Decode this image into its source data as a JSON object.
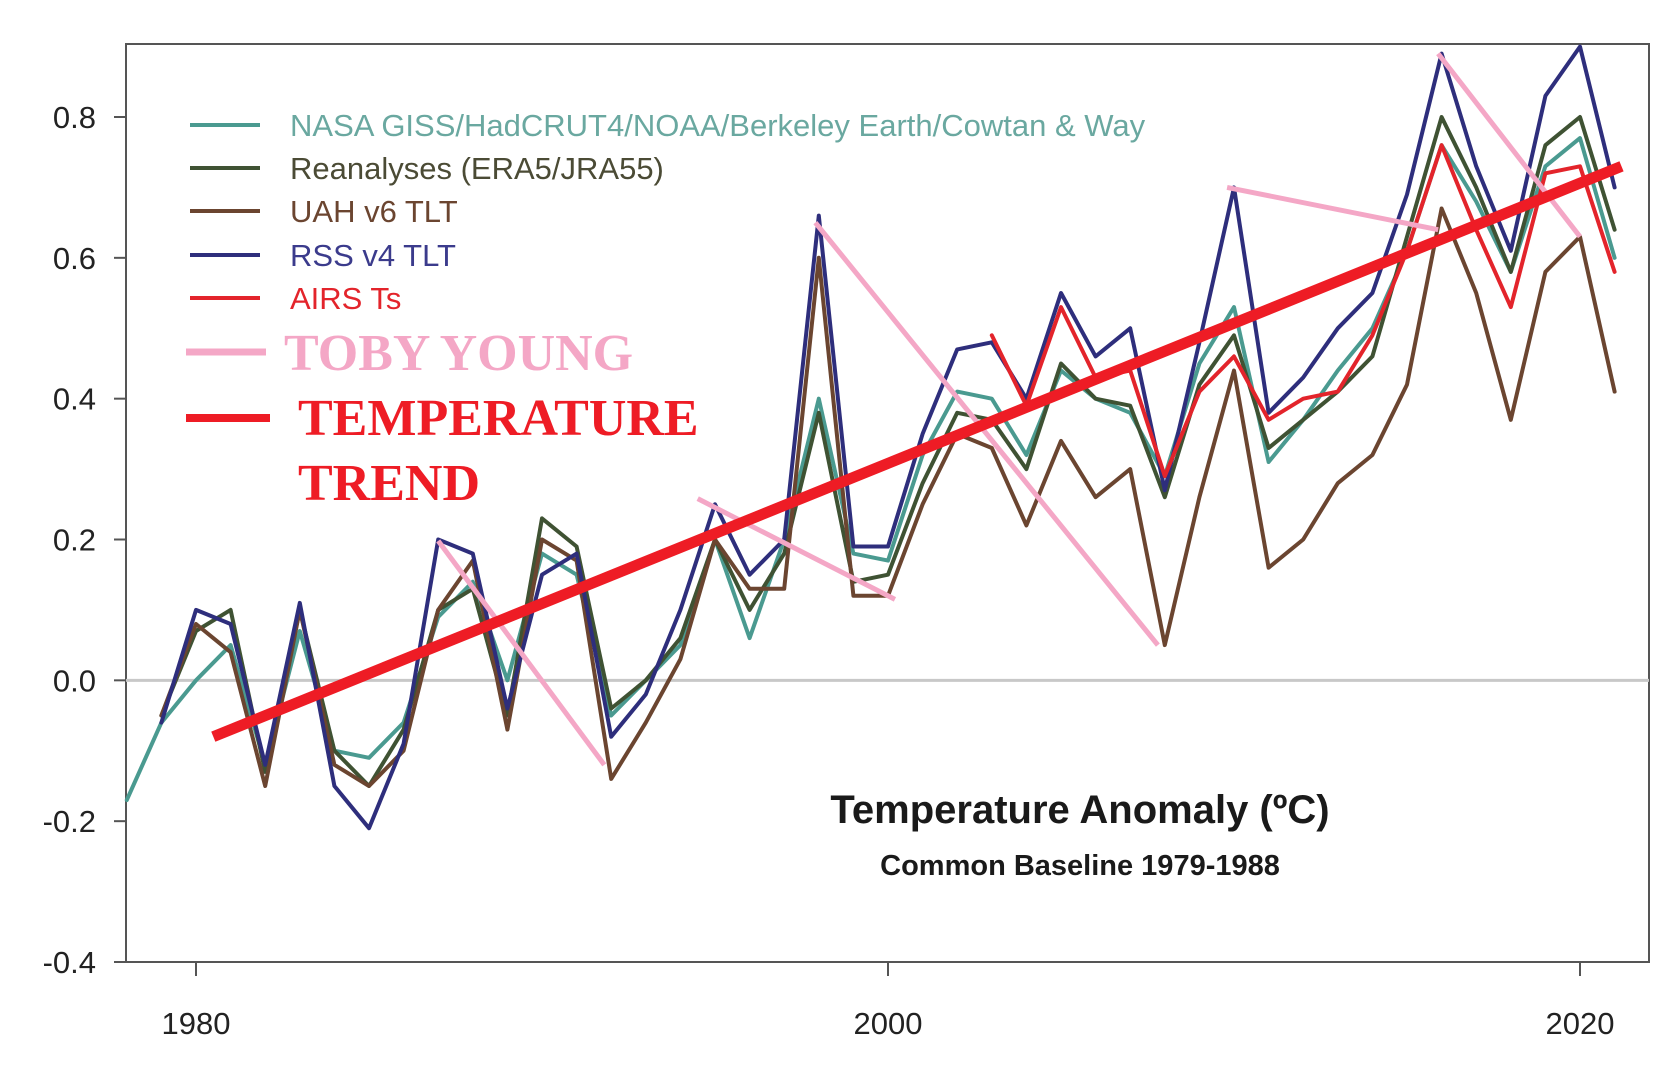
{
  "chart_data": {
    "type": "line",
    "title": "Temperature Anomaly (ºC)",
    "subtitle": "Common Baseline 1979-1988",
    "xlabel": "",
    "ylabel": "",
    "xlim": [
      1979,
      2021.2
    ],
    "ylim": [
      -0.4,
      0.9
    ],
    "x_ticks": [
      1980,
      2000,
      2020
    ],
    "x_tick_labels": [
      "1980",
      "2000",
      "2020"
    ],
    "y_ticks": [
      -0.4,
      -0.2,
      0.0,
      0.2,
      0.4,
      0.6,
      0.8
    ],
    "y_tick_labels": [
      "-0.4",
      "-0.2",
      "0.0",
      "0.2",
      "0.4",
      "0.6",
      "0.8"
    ],
    "grid": false,
    "zero_line": true,
    "legend_position": "top-left",
    "x": [
      1979,
      1980,
      1981,
      1982,
      1983,
      1984,
      1985,
      1986,
      1987,
      1988,
      1989,
      1990,
      1991,
      1992,
      1993,
      1994,
      1995,
      1996,
      1997,
      1998,
      1999,
      2000,
      2001,
      2002,
      2003,
      2004,
      2005,
      2006,
      2007,
      2008,
      2009,
      2010,
      2011,
      2012,
      2013,
      2014,
      2015,
      2016,
      2017,
      2018,
      2019,
      2020,
      2021
    ],
    "series": [
      {
        "name": "NASA GISS/HadCRUT4/NOAA/Berkeley Earth/Cowtan & Way",
        "color": "#4a9a90",
        "x": [
          1978,
          1979,
          1980,
          1981,
          1982,
          1983,
          1984,
          1985,
          1986,
          1987,
          1988,
          1989,
          1990,
          1991,
          1992,
          1993,
          1994,
          1995,
          1996,
          1997,
          1998,
          1999,
          2000,
          2001,
          2002,
          2003,
          2004,
          2005,
          2006,
          2007,
          2008,
          2009,
          2010,
          2011,
          2012,
          2013,
          2014,
          2015,
          2016,
          2017,
          2018,
          2019,
          2020,
          2021
        ],
        "values": [
          -0.17,
          -0.06,
          0.0,
          0.05,
          -0.12,
          0.07,
          -0.1,
          -0.11,
          -0.06,
          0.09,
          0.14,
          0.0,
          0.18,
          0.15,
          -0.05,
          0.0,
          0.05,
          0.2,
          0.06,
          0.2,
          0.4,
          0.18,
          0.17,
          0.32,
          0.41,
          0.4,
          0.32,
          0.44,
          0.4,
          0.38,
          0.29,
          0.45,
          0.53,
          0.31,
          0.37,
          0.44,
          0.5,
          0.61,
          0.76,
          0.68,
          0.58,
          0.73,
          0.77,
          0.6
        ]
      },
      {
        "name": "Reanalyses (ERA5/JRA55)",
        "color": "#3f5233",
        "x": [
          1979,
          1980,
          1981,
          1982,
          1983,
          1984,
          1985,
          1986,
          1987,
          1988,
          1989,
          1990,
          1991,
          1992,
          1993,
          1994,
          1995,
          1996,
          1997,
          1998,
          1999,
          2000,
          2001,
          2002,
          2003,
          2004,
          2005,
          2006,
          2007,
          2008,
          2009,
          2010,
          2011,
          2012,
          2013,
          2014,
          2015,
          2016,
          2017,
          2018,
          2019,
          2020,
          2021
        ],
        "values": [
          -0.05,
          0.07,
          0.1,
          -0.13,
          0.1,
          -0.1,
          -0.15,
          -0.07,
          0.1,
          0.13,
          -0.05,
          0.23,
          0.19,
          -0.04,
          0.0,
          0.06,
          0.2,
          0.1,
          0.18,
          0.38,
          0.14,
          0.15,
          0.28,
          0.38,
          0.37,
          0.3,
          0.45,
          0.4,
          0.39,
          0.26,
          0.42,
          0.49,
          0.33,
          0.37,
          0.41,
          0.46,
          0.63,
          0.8,
          0.7,
          0.58,
          0.76,
          0.8,
          0.64
        ]
      },
      {
        "name": "UAH v6 TLT",
        "color": "#6b4530",
        "x": [
          1979,
          1980,
          1981,
          1982,
          1983,
          1984,
          1985,
          1986,
          1987,
          1988,
          1989,
          1990,
          1991,
          1992,
          1993,
          1994,
          1995,
          1996,
          1997,
          1998,
          1999,
          2000,
          2001,
          2002,
          2003,
          2004,
          2005,
          2006,
          2007,
          2008,
          2009,
          2010,
          2011,
          2012,
          2013,
          2014,
          2015,
          2016,
          2017,
          2018,
          2019,
          2020,
          2021
        ],
        "values": [
          -0.05,
          0.08,
          0.04,
          -0.15,
          0.1,
          -0.12,
          -0.15,
          -0.1,
          0.1,
          0.17,
          -0.07,
          0.2,
          0.17,
          -0.14,
          -0.06,
          0.03,
          0.2,
          0.13,
          0.13,
          0.6,
          0.12,
          0.12,
          0.25,
          0.35,
          0.33,
          0.22,
          0.34,
          0.26,
          0.3,
          0.05,
          0.26,
          0.44,
          0.16,
          0.2,
          0.28,
          0.32,
          0.42,
          0.67,
          0.55,
          0.37,
          0.58,
          0.63,
          0.41
        ]
      },
      {
        "name": "RSS v4 TLT",
        "color": "#2e2e7c",
        "x": [
          1979,
          1980,
          1981,
          1982,
          1983,
          1984,
          1985,
          1986,
          1987,
          1988,
          1989,
          1990,
          1991,
          1992,
          1993,
          1994,
          1995,
          1996,
          1997,
          1998,
          1999,
          2000,
          2001,
          2002,
          2003,
          2004,
          2005,
          2006,
          2007,
          2008,
          2009,
          2010,
          2011,
          2012,
          2013,
          2014,
          2015,
          2016,
          2017,
          2018,
          2019,
          2020,
          2021
        ],
        "values": [
          -0.06,
          0.1,
          0.08,
          -0.12,
          0.11,
          -0.15,
          -0.21,
          -0.09,
          0.2,
          0.18,
          -0.04,
          0.15,
          0.18,
          -0.08,
          -0.02,
          0.1,
          0.25,
          0.15,
          0.2,
          0.66,
          0.19,
          0.19,
          0.35,
          0.47,
          0.48,
          0.4,
          0.55,
          0.46,
          0.5,
          0.27,
          0.48,
          0.7,
          0.38,
          0.43,
          0.5,
          0.55,
          0.69,
          0.89,
          0.73,
          0.61,
          0.83,
          0.9,
          0.7
        ]
      },
      {
        "name": "AIRS Ts",
        "color": "#e3242b",
        "x": [
          2003,
          2004,
          2005,
          2006,
          2007,
          2008,
          2009,
          2010,
          2011,
          2012,
          2013,
          2014,
          2015,
          2016,
          2017,
          2018,
          2019,
          2020,
          2021
        ],
        "values": [
          0.49,
          0.39,
          0.53,
          0.43,
          0.44,
          0.29,
          0.41,
          0.46,
          0.37,
          0.4,
          0.41,
          0.49,
          0.61,
          0.76,
          0.64,
          0.53,
          0.72,
          0.73,
          0.58
        ]
      }
    ],
    "overlays": [
      {
        "name": "TOBY YOUNG",
        "color": "#f4a7c6",
        "segments": [
          {
            "x": [
              1987.0,
              1991.8
            ],
            "values": [
              0.198,
              -0.12
            ]
          },
          {
            "x": [
              1994.5,
              2000.2
            ],
            "values": [
              0.258,
              0.115
            ]
          },
          {
            "x": [
              1997.9,
              2007.8
            ],
            "values": [
              0.65,
              0.05
            ]
          },
          {
            "x": [
              2009.8,
              2015.9
            ],
            "values": [
              0.7,
              0.64
            ]
          },
          {
            "x": [
              2015.9,
              2020.0
            ],
            "values": [
              0.89,
              0.63
            ]
          }
        ]
      },
      {
        "name": "TEMPERATURE TREND",
        "color": "#ee1c25",
        "segments": [
          {
            "x": [
              1980.5,
              2021.2
            ],
            "values": [
              -0.08,
              0.73
            ]
          }
        ]
      }
    ]
  },
  "legend": {
    "items": [
      {
        "label": "NASA GISS/HadCRUT4/NOAA/Berkeley Earth/Cowtan & Way",
        "color": "#4a9a90",
        "text_color": "#6aa8a0"
      },
      {
        "label": "Reanalyses (ERA5/JRA55)",
        "color": "#3f5233",
        "text_color": "#4b4b35"
      },
      {
        "label": "UAH v6 TLT",
        "color": "#6b4530",
        "text_color": "#6b4530"
      },
      {
        "label": "RSS v4 TLT",
        "color": "#2e2e7c",
        "text_color": "#3b3b8c"
      },
      {
        "label": "AIRS Ts",
        "color": "#e3242b",
        "text_color": "#e3242b"
      }
    ],
    "overlay_items": [
      {
        "label": "TOBY YOUNG",
        "color": "#f4a7c6"
      },
      {
        "label_line1": "TEMPERATURE",
        "label_line2": "TREND",
        "color": "#ee1c25"
      }
    ]
  }
}
